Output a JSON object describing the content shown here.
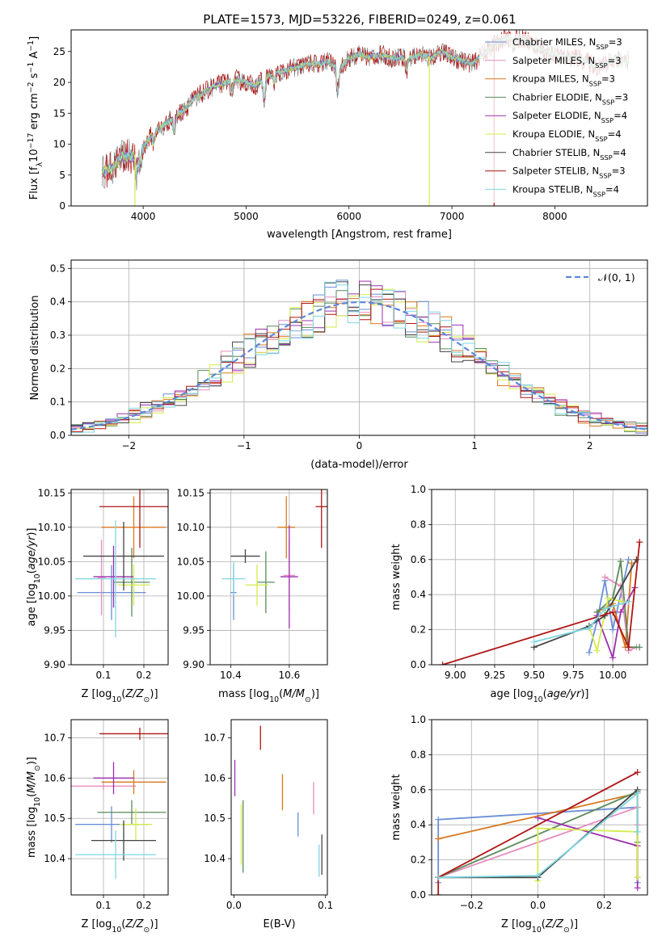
{
  "figure_title": "PLATE=1573, MJD=53226, FIBERID=0249, z=0.061",
  "colors": {
    "Chabrier MILES": "#6a8fd6",
    "Salpeter MILES": "#e68cbf",
    "Kroupa MILES": "#d9781f",
    "Chabrier ELODIE": "#5b8a5b",
    "Salpeter ELODIE": "#9b2fae",
    "Kroupa ELODIE": "#d4ec4a",
    "Chabrier STELIB": "#444444",
    "Salpeter STELIB": "#b01515",
    "Kroupa STELIB": "#7ed6e0"
  },
  "chart_data": [
    {
      "id": "spectrum",
      "type": "line",
      "title": "PLATE=1573, MJD=53226, FIBERID=0249, z=0.061",
      "xlabel": "wavelength [Angstrom, rest frame]",
      "ylabel_parts": [
        "Flux [f",
        "λ",
        "10",
        "−17",
        " erg cm",
        "−2",
        " s",
        "−1",
        " A",
        "−1",
        "]"
      ],
      "xlim": [
        3300,
        8900
      ],
      "ylim": [
        0,
        28.5
      ],
      "xticks": [
        4000,
        5000,
        6000,
        7000,
        8000
      ],
      "yticks": [
        0,
        5,
        10,
        15,
        20,
        25
      ],
      "grid": false,
      "legend_position": "lower-right",
      "legend": [
        {
          "name": "Chabrier MILES, N",
          "sub": "SSP",
          "tail": "=3"
        },
        {
          "name": "Salpeter MILES, N",
          "sub": "SSP",
          "tail": "=3"
        },
        {
          "name": "Kroupa MILES, N",
          "sub": "SSP",
          "tail": "=3"
        },
        {
          "name": "Chabrier ELODIE, N",
          "sub": "SSP",
          "tail": "=3"
        },
        {
          "name": "Salpeter ELODIE, N",
          "sub": "SSP",
          "tail": "=4"
        },
        {
          "name": "Kroupa ELODIE, N",
          "sub": "SSP",
          "tail": "=4"
        },
        {
          "name": "Chabrier STELIB, N",
          "sub": "SSP",
          "tail": "=4"
        },
        {
          "name": "Salpeter STELIB, N",
          "sub": "SSP",
          "tail": "=3"
        },
        {
          "name": "Kroupa STELIB, N",
          "sub": "SSP",
          "tail": "=4"
        }
      ],
      "observed_envelope": {
        "x": [
          3600,
          3700,
          3800,
          3900,
          4000,
          4100,
          4200,
          4300,
          4400,
          4500,
          4600,
          4700,
          4800,
          4900,
          5000,
          5100,
          5200,
          5300,
          5400,
          5500,
          5600,
          5700,
          5800,
          5900,
          6000,
          6100,
          6200,
          6300,
          6400,
          6500,
          6600,
          6700,
          6800,
          6900,
          7000,
          7100,
          7200,
          7300,
          7400,
          7500,
          7600,
          7700,
          7800,
          7900,
          8000,
          8100,
          8200,
          8300,
          8400,
          8500,
          8600,
          8700
        ],
        "y": [
          5.5,
          6.2,
          8.0,
          8.0,
          9.5,
          12.0,
          13.0,
          14.5,
          15.5,
          17.5,
          18.5,
          19.5,
          20.0,
          20.5,
          20.0,
          19.5,
          21.0,
          21.5,
          22.0,
          22.5,
          23.0,
          23.0,
          23.5,
          22.0,
          24.0,
          24.5,
          24.0,
          24.5,
          24.0,
          24.0,
          24.0,
          24.5,
          24.0,
          25.0,
          24.0,
          23.5,
          23.0,
          24.5,
          26.0,
          27.0,
          27.2,
          27.0,
          26.0,
          25.0,
          24.5,
          24.0,
          24.0,
          23.5,
          22.5,
          23.0,
          24.0,
          23.5
        ]
      },
      "dips": [
        {
          "x": 6780,
          "label": "Kroupa ELODIE"
        },
        {
          "x": 7410,
          "label": "Salpeter STELIB"
        },
        {
          "x": 3920,
          "label": "Kroupa ELODIE"
        }
      ]
    },
    {
      "id": "residual-histogram",
      "type": "line",
      "xlabel": "(data-model)/error",
      "ylabel": "Normed distribution",
      "xlim": [
        -2.5,
        2.5
      ],
      "ylim": [
        0,
        0.525
      ],
      "xticks": [
        -2,
        -1,
        0,
        1,
        2
      ],
      "yticks": [
        0.0,
        0.1,
        0.2,
        0.3,
        0.4,
        0.5
      ],
      "grid": true,
      "legend_position": "upper-right",
      "legend": [
        "𝒩(0, 1)"
      ],
      "bin_width": 0.1,
      "gaussian": {
        "mean": 0,
        "sigma": 1
      }
    },
    {
      "id": "age-vs-Z",
      "type": "scatter",
      "xlabel": "Z [log10(Z/Z⊙)]",
      "ylabel": "age  [log10(age/yr)]",
      "xlim": [
        0.02,
        0.26
      ],
      "ylim": [
        9.9,
        10.155
      ],
      "xticks": [
        0.1,
        0.2
      ],
      "yticks": [
        9.9,
        9.95,
        10.0,
        10.05,
        10.1,
        10.15
      ],
      "grid": true,
      "points": [
        {
          "label": "Chabrier MILES",
          "x": 0.12,
          "xerr": 0.085,
          "y": 10.005,
          "yerr": 0.04
        },
        {
          "label": "Salpeter MILES",
          "x": 0.095,
          "xerr": 0.01,
          "y": 10.027,
          "yerr": 0.055
        },
        {
          "label": "Kroupa MILES",
          "x": 0.175,
          "xerr": 0.08,
          "y": 10.1,
          "yerr": 0.045
        },
        {
          "label": "Chabrier ELODIE",
          "x": 0.17,
          "xerr": 0.045,
          "y": 10.02,
          "yerr": 0.05
        },
        {
          "label": "Salpeter ELODIE",
          "x": 0.125,
          "xerr": 0.05,
          "y": 10.028,
          "yerr": 0.045
        },
        {
          "label": "Kroupa ELODIE",
          "x": 0.175,
          "xerr": 0.04,
          "y": 10.016,
          "yerr": 0.03
        },
        {
          "label": "Chabrier STELIB",
          "x": 0.15,
          "xerr": 0.1,
          "y": 10.058,
          "yerr": 0.05
        },
        {
          "label": "Salpeter STELIB",
          "x": 0.19,
          "xerr": 0.1,
          "y": 10.13,
          "yerr": 0.06
        },
        {
          "label": "Kroupa STELIB",
          "x": 0.13,
          "xerr": 0.1,
          "y": 10.025,
          "yerr": 0.085
        }
      ]
    },
    {
      "id": "age-vs-mass",
      "type": "scatter",
      "xlabel": "mass [log10(M/M⊙)]",
      "ylabel": "",
      "xlim": [
        10.33,
        10.73
      ],
      "ylim": [
        9.9,
        10.155
      ],
      "xticks": [
        10.4,
        10.6
      ],
      "yticks": [
        9.9,
        9.95,
        10.0,
        10.05,
        10.1,
        10.15
      ],
      "grid": true,
      "points": [
        {
          "label": "Chabrier MILES",
          "x": 10.41,
          "xerr": 0.01,
          "y": 10.005,
          "yerr": 0.04
        },
        {
          "label": "Salpeter MILES",
          "x": 10.6,
          "xerr": 0.02,
          "y": 10.03,
          "yerr": 0.05
        },
        {
          "label": "Kroupa MILES",
          "x": 10.59,
          "xerr": 0.03,
          "y": 10.1,
          "yerr": 0.045
        },
        {
          "label": "Chabrier ELODIE",
          "x": 10.52,
          "xerr": 0.03,
          "y": 10.02,
          "yerr": 0.045
        },
        {
          "label": "Salpeter ELODIE",
          "x": 10.6,
          "xerr": 0.03,
          "y": 10.028,
          "yerr": 0.075
        },
        {
          "label": "Kroupa ELODIE",
          "x": 10.49,
          "xerr": 0.04,
          "y": 10.016,
          "yerr": 0.03
        },
        {
          "label": "Chabrier STELIB",
          "x": 10.45,
          "xerr": 0.05,
          "y": 10.058,
          "yerr": 0.01
        },
        {
          "label": "Salpeter STELIB",
          "x": 10.71,
          "xerr": 0.02,
          "y": 10.13,
          "yerr": 0.06
        },
        {
          "label": "Kroupa STELIB",
          "x": 10.41,
          "xerr": 0.04,
          "y": 10.025,
          "yerr": 0.025
        }
      ]
    },
    {
      "id": "mass-weight-vs-age",
      "type": "line",
      "xlabel": "age  [log10(age/yr)]",
      "ylabel": "mass weight",
      "xlim": [
        8.85,
        10.22
      ],
      "ylim": [
        0.0,
        1.0
      ],
      "xticks": [
        9.0,
        9.25,
        9.5,
        9.75,
        10.0
      ],
      "yticks": [
        0.0,
        0.2,
        0.4,
        0.6,
        0.8,
        1.0
      ],
      "grid": true,
      "series": [
        {
          "label": "Chabrier MILES",
          "x": [
            9.85,
            9.9,
            9.95,
            10.0,
            10.1
          ],
          "y": [
            0.07,
            0.25,
            0.48,
            0.2,
            0.6
          ]
        },
        {
          "label": "Salpeter MILES",
          "x": [
            9.95,
            10.05,
            10.1,
            10.15
          ],
          "y": [
            0.5,
            0.45,
            0.08,
            0.1
          ]
        },
        {
          "label": "Kroupa MILES",
          "x": [
            9.9,
            10.0,
            10.08,
            10.12
          ],
          "y": [
            0.3,
            0.35,
            0.1,
            0.58
          ]
        },
        {
          "label": "Chabrier ELODIE",
          "x": [
            9.9,
            10.0,
            10.05,
            10.1,
            10.17
          ],
          "y": [
            0.3,
            0.38,
            0.59,
            0.1,
            0.1
          ]
        },
        {
          "label": "Salpeter ELODIE",
          "x": [
            9.9,
            10.0,
            10.05,
            10.14
          ],
          "y": [
            0.28,
            0.04,
            0.3,
            0.44
          ]
        },
        {
          "label": "Kroupa ELODIE",
          "x": [
            9.85,
            9.9,
            9.97,
            10.06
          ],
          "y": [
            0.22,
            0.08,
            0.38,
            0.36
          ]
        },
        {
          "label": "Chabrier STELIB",
          "x": [
            9.5,
            9.85,
            9.95,
            10.15
          ],
          "y": [
            0.1,
            0.22,
            0.28,
            0.6
          ]
        },
        {
          "label": "Salpeter STELIB",
          "x": [
            8.92,
            10.0,
            10.1,
            10.17
          ],
          "y": [
            0.0,
            0.3,
            0.1,
            0.7
          ]
        },
        {
          "label": "Kroupa STELIB",
          "x": [
            9.5,
            9.85,
            9.95,
            10.1
          ],
          "y": [
            0.13,
            0.21,
            0.32,
            0.36
          ]
        }
      ]
    },
    {
      "id": "mass-vs-Z",
      "type": "scatter",
      "xlabel": "Z [log10(Z/Z⊙)]",
      "ylabel": "mass [log10(M/M⊙)]",
      "xlim": [
        0.02,
        0.26
      ],
      "ylim": [
        10.31,
        10.745
      ],
      "xticks": [
        0.1,
        0.2
      ],
      "yticks": [
        10.4,
        10.5,
        10.6,
        10.7
      ],
      "grid": true,
      "points": [
        {
          "label": "Chabrier MILES",
          "x": 0.12,
          "xerr": 0.09,
          "y": 10.485,
          "yerr": 0.045
        },
        {
          "label": "Salpeter MILES",
          "x": 0.1,
          "xerr": 0.08,
          "y": 10.58,
          "yerr": 0.01
        },
        {
          "label": "Kroupa MILES",
          "x": 0.175,
          "xerr": 0.08,
          "y": 10.59,
          "yerr": 0.03
        },
        {
          "label": "Chabrier ELODIE",
          "x": 0.17,
          "xerr": 0.085,
          "y": 10.515,
          "yerr": 0.03
        },
        {
          "label": "Salpeter ELODIE",
          "x": 0.125,
          "xerr": 0.05,
          "y": 10.6,
          "yerr": 0.04
        },
        {
          "label": "Kroupa ELODIE",
          "x": 0.18,
          "xerr": 0.04,
          "y": 10.485,
          "yerr": 0.04
        },
        {
          "label": "Chabrier STELIB",
          "x": 0.15,
          "xerr": 0.08,
          "y": 10.445,
          "yerr": 0.05
        },
        {
          "label": "Salpeter STELIB",
          "x": 0.19,
          "xerr": 0.1,
          "y": 10.71,
          "yerr": 0.015
        },
        {
          "label": "Kroupa STELIB",
          "x": 0.13,
          "xerr": 0.1,
          "y": 10.41,
          "yerr": 0.06
        }
      ]
    },
    {
      "id": "mass-vs-EBV",
      "type": "scatter",
      "xlabel": "E(B-V)",
      "ylabel": "",
      "xlim": [
        -0.003,
        0.102
      ],
      "ylim": [
        10.31,
        10.745
      ],
      "xticks": [
        0.0,
        0.1
      ],
      "yticks": [
        10.4,
        10.5,
        10.6,
        10.7
      ],
      "grid": false,
      "points": [
        {
          "label": "Chabrier MILES",
          "x": 0.07,
          "xerr": 0.0,
          "y": 10.485,
          "yerr": 0.03
        },
        {
          "label": "Salpeter MILES",
          "x": 0.087,
          "xerr": 0.0,
          "y": 10.55,
          "yerr": 0.04
        },
        {
          "label": "Kroupa MILES",
          "x": 0.053,
          "xerr": 0.0,
          "y": 10.565,
          "yerr": 0.045
        },
        {
          "label": "Chabrier ELODIE",
          "x": 0.01,
          "xerr": 0.0,
          "y": 10.455,
          "yerr": 0.09
        },
        {
          "label": "Salpeter ELODIE",
          "x": 0.001,
          "xerr": 0.0,
          "y": 10.6,
          "yerr": 0.045
        },
        {
          "label": "Kroupa ELODIE",
          "x": 0.008,
          "xerr": 0.0,
          "y": 10.46,
          "yerr": 0.075
        },
        {
          "label": "Chabrier STELIB",
          "x": 0.096,
          "xerr": 0.0,
          "y": 10.41,
          "yerr": 0.05
        },
        {
          "label": "Salpeter STELIB",
          "x": 0.029,
          "xerr": 0.0,
          "y": 10.7,
          "yerr": 0.03
        },
        {
          "label": "Kroupa STELIB",
          "x": 0.093,
          "xerr": 0.0,
          "y": 10.395,
          "yerr": 0.04
        }
      ]
    },
    {
      "id": "mass-weight-vs-Z",
      "type": "line",
      "xlabel": "Z [log10(Z/Z⊙)]",
      "ylabel": "mass weight",
      "xlim": [
        -0.32,
        0.33
      ],
      "ylim": [
        0.0,
        1.0
      ],
      "xticks": [
        -0.2,
        0.0,
        0.2
      ],
      "yticks": [
        0.0,
        0.2,
        0.4,
        0.6,
        0.8,
        1.0
      ],
      "grid": true,
      "series": [
        {
          "label": "Chabrier MILES",
          "x": [
            -0.3,
            -0.3,
            0.3,
            0.3
          ],
          "y": [
            0.07,
            0.43,
            0.5,
            0.07
          ]
        },
        {
          "label": "Salpeter MILES",
          "x": [
            -0.3,
            0.3,
            0.3
          ],
          "y": [
            0.1,
            0.5,
            0.4
          ]
        },
        {
          "label": "Kroupa MILES",
          "x": [
            -0.3,
            0.3,
            0.3
          ],
          "y": [
            0.32,
            0.58,
            0.1
          ]
        },
        {
          "label": "Chabrier ELODIE",
          "x": [
            -0.3,
            0.3,
            0.3
          ],
          "y": [
            0.1,
            0.59,
            0.3
          ]
        },
        {
          "label": "Salpeter ELODIE",
          "x": [
            0.0,
            0.3,
            0.3
          ],
          "y": [
            0.44,
            0.28,
            0.04
          ]
        },
        {
          "label": "Kroupa ELODIE",
          "x": [
            0.0,
            0.0,
            0.3,
            0.3
          ],
          "y": [
            0.08,
            0.38,
            0.36,
            0.1
          ]
        },
        {
          "label": "Chabrier STELIB",
          "x": [
            -0.3,
            0.0,
            0.3
          ],
          "y": [
            0.1,
            0.1,
            0.6
          ]
        },
        {
          "label": "Salpeter STELIB",
          "x": [
            -0.3,
            -0.3,
            0.3
          ],
          "y": [
            0.0,
            0.1,
            0.7
          ]
        },
        {
          "label": "Kroupa STELIB",
          "x": [
            -0.3,
            0.0,
            0.3,
            0.3
          ],
          "y": [
            0.1,
            0.11,
            0.58,
            0.36
          ]
        }
      ]
    }
  ]
}
